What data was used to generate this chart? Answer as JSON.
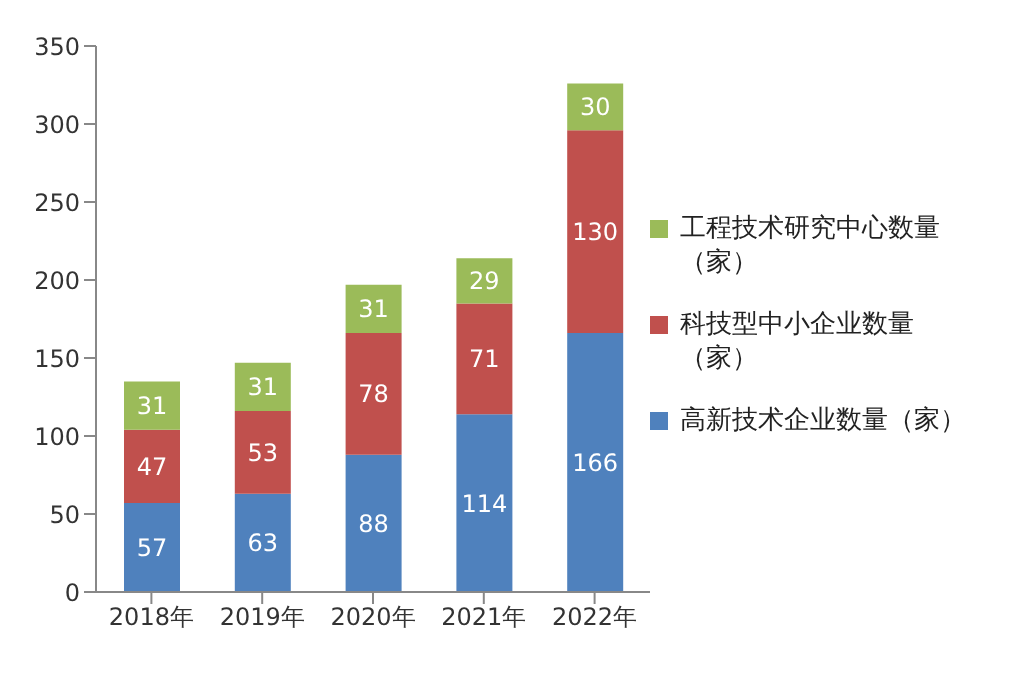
{
  "chart_data": {
    "type": "bar",
    "stacked": true,
    "categories": [
      "2018年",
      "2019年",
      "2020年",
      "2021年",
      "2022年"
    ],
    "series": [
      {
        "name": "高新技术企业数量（家）",
        "color": "#4f81bd",
        "values": [
          57,
          63,
          88,
          114,
          166
        ]
      },
      {
        "name": "科技型中小企业数量（家）",
        "color": "#c0504d",
        "values": [
          47,
          53,
          78,
          71,
          130
        ]
      },
      {
        "name": "工程技术研究中心数量（家）",
        "color": "#9bbb59",
        "values": [
          31,
          31,
          31,
          29,
          30
        ]
      }
    ],
    "ylim": [
      0,
      350
    ],
    "yticks": [
      0,
      50,
      100,
      150,
      200,
      250,
      300,
      350
    ],
    "grid": false,
    "legend": "right",
    "data_labels": true
  }
}
